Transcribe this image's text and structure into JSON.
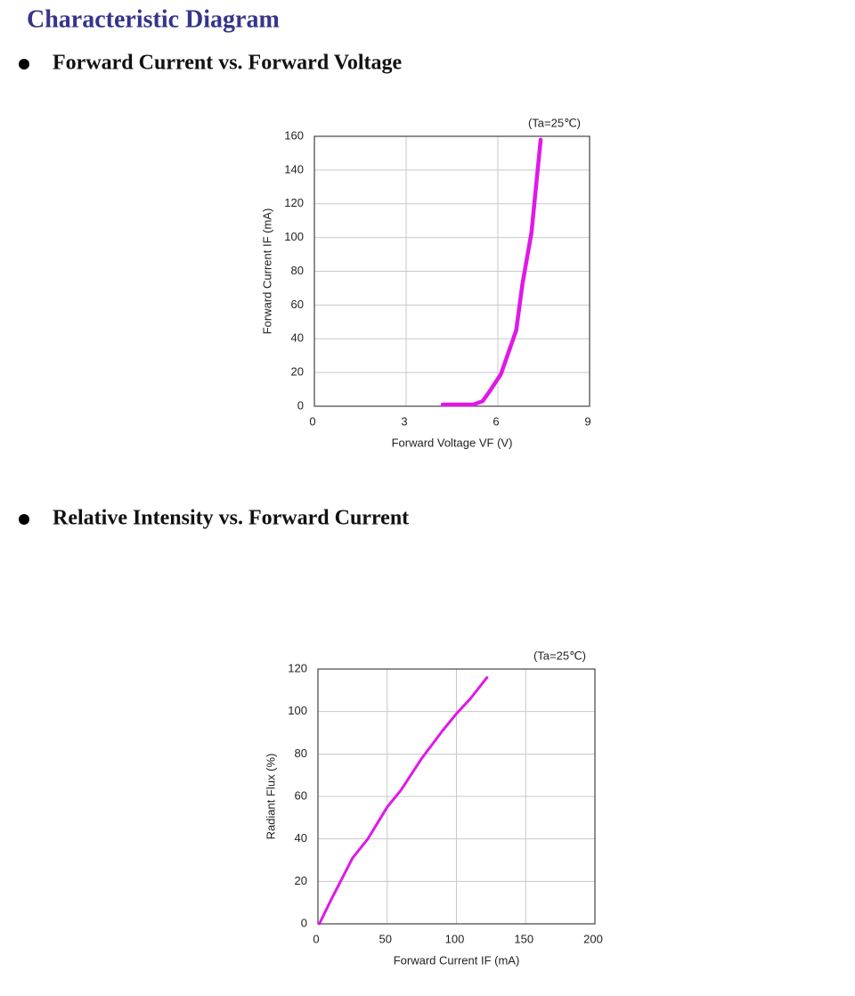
{
  "title": "Characteristic Diagram",
  "sections": [
    "Forward Current vs. Forward Voltage",
    "Relative Intensity vs. Forward Current"
  ],
  "chart_data": [
    {
      "type": "line",
      "annotation": "(Ta=25℃)",
      "x_label": "Forward Voltage VF (V)",
      "y_label": "Forward Current IF (mA)",
      "x": [
        4.2,
        5.2,
        5.5,
        5.7,
        6.1,
        6.6,
        6.8,
        7.1,
        7.4
      ],
      "values": [
        1,
        1,
        3,
        8,
        19,
        45,
        72,
        103,
        158
      ],
      "color": "#e018e8",
      "xlim": [
        0,
        9
      ],
      "xticks": [
        0,
        3,
        6,
        9
      ],
      "ylim": [
        0,
        160
      ],
      "yticks": [
        0,
        20,
        40,
        60,
        80,
        100,
        120,
        140,
        160
      ],
      "grid": true
    },
    {
      "type": "line",
      "annotation": "(Ta=25℃)",
      "x_label": "Forward Current IF (mA)",
      "y_label": "Radiant Flux (%)",
      "x": [
        1,
        10,
        25,
        36,
        50,
        60,
        75,
        90,
        100,
        110,
        122
      ],
      "values": [
        0,
        12,
        31,
        40,
        55,
        63,
        78,
        91,
        99,
        106,
        116
      ],
      "color": "#e018e8",
      "xlim": [
        0,
        200
      ],
      "xticks": [
        0,
        50,
        100,
        150,
        200
      ],
      "ylim": [
        0,
        120
      ],
      "yticks": [
        0,
        20,
        40,
        60,
        80,
        100,
        120
      ],
      "grid": true
    }
  ]
}
